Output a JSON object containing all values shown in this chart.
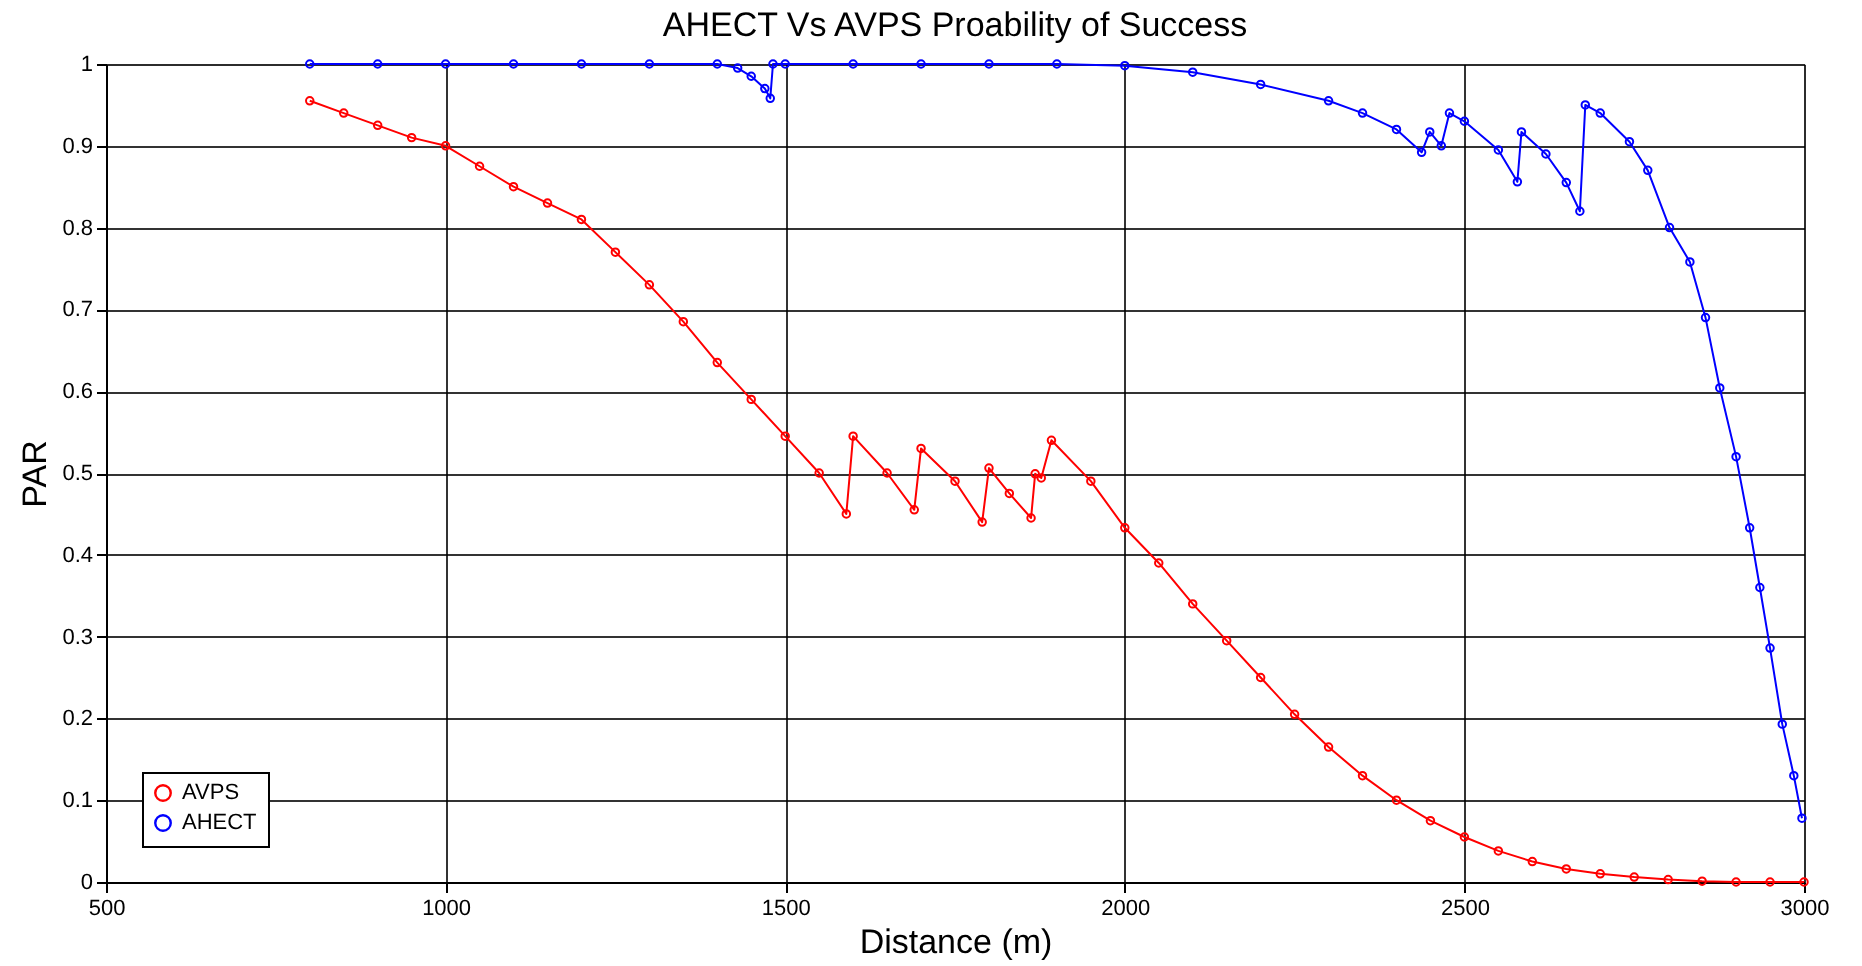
{
  "chart_data": {
    "type": "line",
    "title": "AHECT Vs AVPS Proability of Success",
    "xlabel": "Distance (m)",
    "ylabel": "PAR",
    "xlim": [
      500,
      3000
    ],
    "xticks": [
      500,
      1000,
      1500,
      2000,
      2500,
      3000
    ],
    "ylim": [
      0,
      1
    ],
    "yticks": [
      0,
      0.1,
      0.2,
      0.3,
      0.4,
      0.5,
      0.6,
      0.7,
      0.8,
      0.9,
      1
    ],
    "grid": true,
    "legend": "bottom left",
    "marker": "circle",
    "line_style": "solid",
    "series": [
      {
        "name": "AVPS",
        "color": "#ff0000",
        "x": [
          800,
          850,
          900,
          950,
          1000,
          1050,
          1100,
          1150,
          1200,
          1250,
          1300,
          1350,
          1400,
          1450,
          1500,
          1550,
          1590,
          1600,
          1650,
          1690,
          1700,
          1750,
          1790,
          1800,
          1830,
          1862,
          1868,
          1877,
          1892,
          1950,
          2000,
          2050,
          2100,
          2150,
          2200,
          2250,
          2300,
          2350,
          2400,
          2450,
          2500,
          2550,
          2600,
          2650,
          2700,
          2750,
          2800,
          2850,
          2900,
          2950,
          3000
        ],
        "values": [
          0.955,
          0.94,
          0.925,
          0.91,
          0.9,
          0.875,
          0.85,
          0.83,
          0.81,
          0.77,
          0.73,
          0.685,
          0.635,
          0.59,
          0.545,
          0.5,
          0.45,
          0.545,
          0.5,
          0.455,
          0.53,
          0.49,
          0.44,
          0.506,
          0.475,
          0.445,
          0.499,
          0.494,
          0.54,
          0.49,
          0.433,
          0.39,
          0.34,
          0.295,
          0.25,
          0.205,
          0.165,
          0.13,
          0.1,
          0.075,
          0.055,
          0.038,
          0.025,
          0.016,
          0.01,
          0.006,
          0.003,
          0.001,
          0,
          0,
          0
        ]
      },
      {
        "name": "AHECT",
        "color": "#0000ff",
        "x": [
          800,
          900,
          1000,
          1100,
          1200,
          1300,
          1400,
          1430,
          1450,
          1470,
          1478,
          1482,
          1500,
          1600,
          1700,
          1800,
          1900,
          2000,
          2100,
          2200,
          2300,
          2350,
          2400,
          2437,
          2449,
          2466,
          2478,
          2500,
          2550,
          2578,
          2584,
          2620,
          2650,
          2670,
          2678,
          2700,
          2743,
          2770,
          2802,
          2832,
          2855,
          2876,
          2900,
          2920,
          2935,
          2950,
          2968,
          2985,
          2997
        ],
        "values": [
          1,
          1,
          1,
          1,
          1,
          1,
          1,
          0.995,
          0.985,
          0.97,
          0.958,
          1,
          1,
          1,
          1,
          1,
          1,
          0.998,
          0.99,
          0.975,
          0.955,
          0.94,
          0.92,
          0.892,
          0.917,
          0.9,
          0.94,
          0.93,
          0.895,
          0.856,
          0.917,
          0.89,
          0.855,
          0.82,
          0.95,
          0.94,
          0.905,
          0.87,
          0.8,
          0.758,
          0.69,
          0.604,
          0.52,
          0.433,
          0.36,
          0.286,
          0.193,
          0.13,
          0.078
        ]
      }
    ]
  }
}
